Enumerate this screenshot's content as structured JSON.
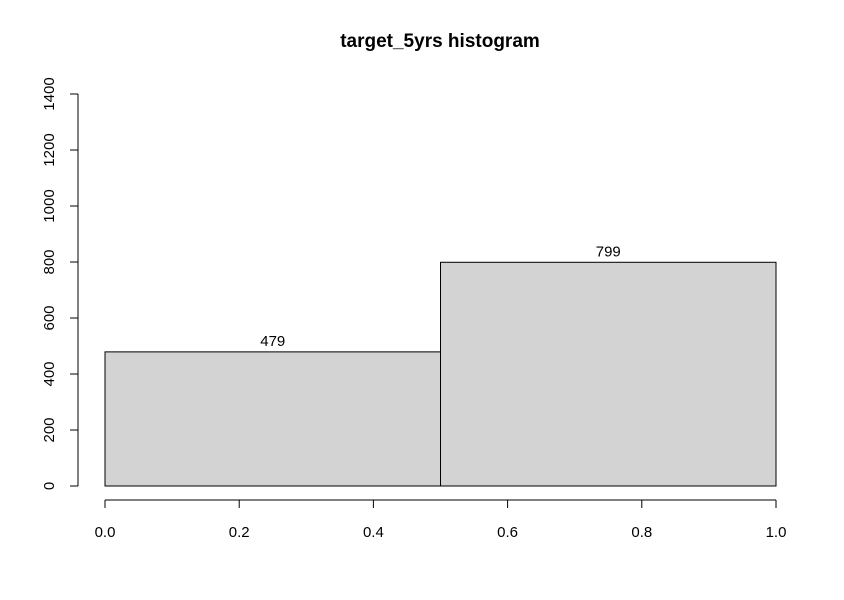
{
  "chart_data": {
    "type": "bar",
    "title": "target_5yrs histogram",
    "xlabel": "",
    "ylabel": "",
    "bins": [
      {
        "start": 0.0,
        "end": 0.5,
        "count": 479,
        "label": "479"
      },
      {
        "start": 0.5,
        "end": 1.0,
        "count": 799,
        "label": "799"
      }
    ],
    "xlim": [
      0.0,
      1.0
    ],
    "ylim": [
      0,
      1400
    ],
    "x_ticks": [
      0.0,
      0.2,
      0.4,
      0.6,
      0.8,
      1.0
    ],
    "x_tick_labels": [
      "0.0",
      "0.2",
      "0.4",
      "0.6",
      "0.8",
      "1.0"
    ],
    "y_ticks": [
      0,
      200,
      400,
      600,
      800,
      1000,
      1200,
      1400
    ],
    "y_tick_labels": [
      "0",
      "200",
      "400",
      "600",
      "800",
      "1000",
      "1200",
      "1400"
    ],
    "grid": false,
    "bar_color": "#d3d3d3",
    "edge_color": "#000000"
  }
}
